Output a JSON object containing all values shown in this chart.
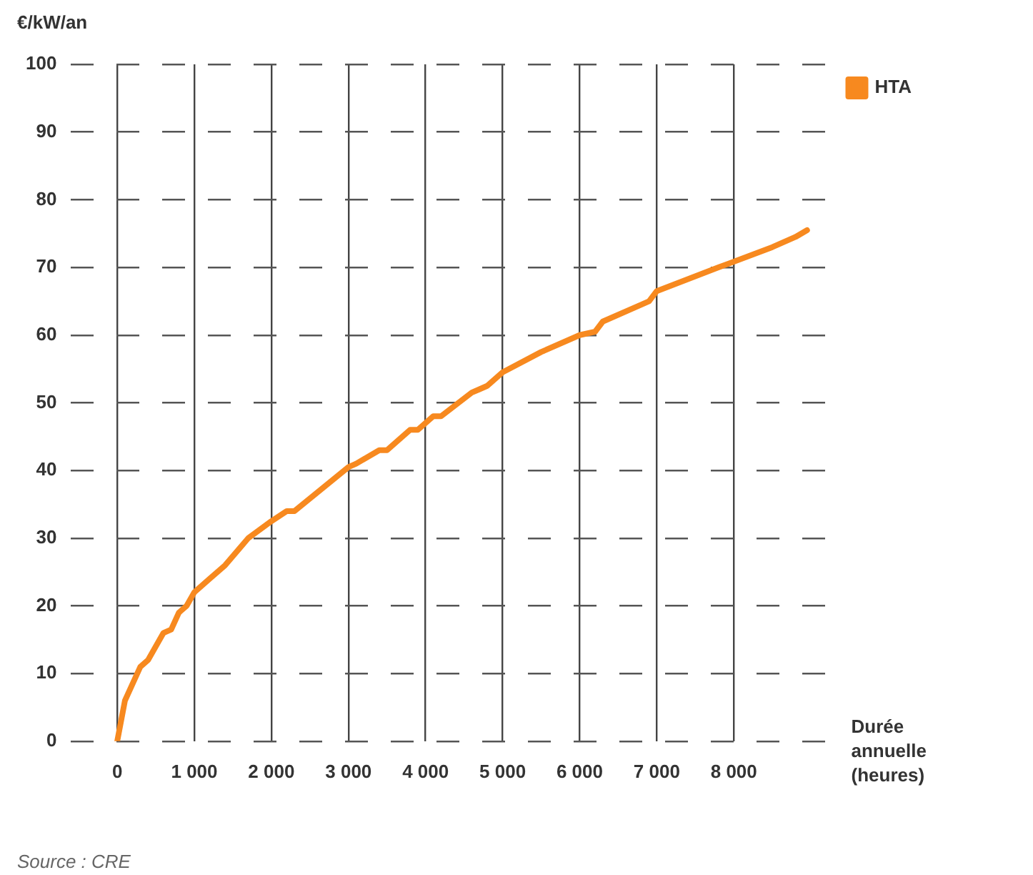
{
  "chart_data": {
    "type": "line",
    "ylabel": "€/kW/an",
    "xlabel": "Durée annuelle (heures)",
    "annotations": [
      "Source : CRE"
    ],
    "legend": "top right",
    "grid": true,
    "marker": "none",
    "line_style": "solid",
    "xlim": [
      -600,
      9300
    ],
    "xticks": [
      0,
      {
        "value": 1000,
        "label": "1 000"
      },
      {
        "value": 2000,
        "label": "2 000"
      },
      {
        "value": 3000,
        "label": "3 000"
      },
      {
        "value": 4000,
        "label": "4 000"
      },
      {
        "value": 5000,
        "label": "5 000"
      },
      {
        "value": 6000,
        "label": "6 000"
      },
      {
        "value": 7000,
        "label": "7 000"
      },
      {
        "value": 8000,
        "label": "8 000"
      }
    ],
    "ylim": [
      0,
      100
    ],
    "yticks": [
      0,
      10,
      20,
      30,
      40,
      50,
      60,
      70,
      80,
      90,
      100
    ],
    "series": [
      {
        "name": "HTA",
        "color": "#f7891f",
        "x": [
          0,
          100,
          300,
          400,
          600,
          700,
          800,
          900,
          1000,
          1200,
          1400,
          1700,
          2000,
          2200,
          2300,
          3000,
          3100,
          3400,
          3500,
          3800,
          3900,
          4100,
          4200,
          4600,
          4700,
          4800,
          5000,
          5500,
          6000,
          6200,
          6300,
          6800,
          6900,
          7000,
          7800,
          8500,
          8800,
          8950
        ],
        "values": [
          0,
          6,
          11,
          12,
          16,
          16.5,
          19,
          20,
          22,
          24,
          26,
          30,
          32.5,
          34,
          34,
          40.5,
          41,
          43,
          43,
          46,
          46,
          48,
          48,
          51.5,
          52,
          52.5,
          54.5,
          57.5,
          60,
          60.5,
          62,
          64.5,
          65,
          66.5,
          70,
          73,
          74.5,
          75.5
        ]
      }
    ]
  }
}
